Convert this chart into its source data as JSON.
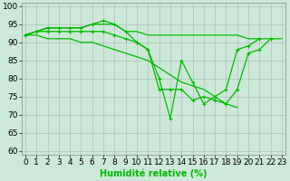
{
  "x": [
    0,
    1,
    2,
    3,
    4,
    5,
    6,
    7,
    8,
    9,
    10,
    11,
    12,
    13,
    14,
    15,
    16,
    17,
    18,
    19,
    20,
    21,
    22,
    23
  ],
  "line1": [
    92,
    93,
    94,
    94,
    94,
    94,
    95,
    95,
    95,
    93,
    93,
    92,
    92,
    92,
    92,
    92,
    92,
    92,
    92,
    92,
    91,
    91,
    91,
    91
  ],
  "line2": [
    92,
    93,
    94,
    94,
    94,
    94,
    95,
    96,
    95,
    93,
    90,
    88,
    80,
    69,
    85,
    79,
    73,
    75,
    77,
    88,
    89,
    91,
    null,
    null
  ],
  "line3": [
    92,
    93,
    93,
    93,
    93,
    93,
    93,
    93,
    92,
    91,
    90,
    88,
    77,
    77,
    77,
    74,
    75,
    74,
    73,
    77,
    87,
    88,
    91,
    null
  ],
  "line4": [
    92,
    92,
    91,
    91,
    91,
    90,
    90,
    89,
    88,
    87,
    86,
    85,
    83,
    81,
    79,
    78,
    77,
    75,
    73,
    72,
    null,
    null,
    null,
    null
  ],
  "bg_color": "#cce8d8",
  "grid_color": "#aaaaaa",
  "line_color": "#00bb00",
  "marker": "+",
  "ylabel_ticks": [
    60,
    65,
    70,
    75,
    80,
    85,
    90,
    95,
    100
  ],
  "ylim": [
    59,
    101
  ],
  "xlim": [
    -0.3,
    23.3
  ],
  "xlabel": "Humidité relative (%)",
  "xlabel_fontsize": 7,
  "tick_fontsize": 6.5
}
